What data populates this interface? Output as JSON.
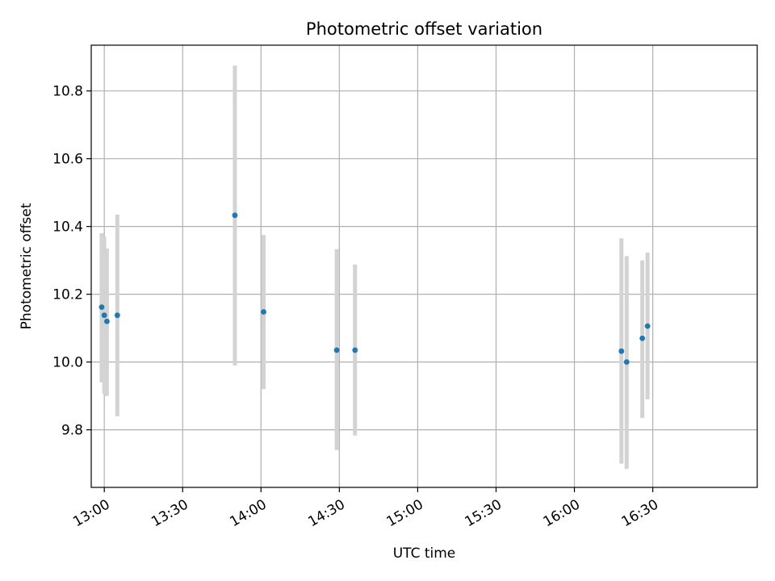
{
  "chart_data": {
    "type": "scatter",
    "title": "Photometric offset variation",
    "xlabel": "UTC time",
    "ylabel": "Photometric offset",
    "xlim": [
      "12:55",
      "17:10"
    ],
    "ylim": [
      9.63,
      10.935
    ],
    "grid": true,
    "x_ticks": [
      "13:00",
      "13:30",
      "14:00",
      "14:30",
      "15:00",
      "15:30",
      "16:00",
      "16:30"
    ],
    "y_ticks": [
      9.8,
      10.0,
      10.2,
      10.4,
      10.6,
      10.8
    ],
    "y_tick_labels": [
      "9.8",
      "10.0",
      "10.2",
      "10.4",
      "10.6",
      "10.8"
    ],
    "point_color": "#1f77b4",
    "errorbar_color": "#d3d3d3",
    "points": [
      {
        "x": "12:59",
        "y": 10.162,
        "yerr_low": 9.94,
        "yerr_high": 10.38
      },
      {
        "x": "13:00",
        "y": 10.138,
        "yerr_low": 9.905,
        "yerr_high": 10.37
      },
      {
        "x": "13:01",
        "y": 10.12,
        "yerr_low": 9.9,
        "yerr_high": 10.335
      },
      {
        "x": "13:05",
        "y": 10.138,
        "yerr_low": 9.84,
        "yerr_high": 10.435
      },
      {
        "x": "13:50",
        "y": 10.433,
        "yerr_low": 9.99,
        "yerr_high": 10.875
      },
      {
        "x": "14:01",
        "y": 10.148,
        "yerr_low": 9.92,
        "yerr_high": 10.375
      },
      {
        "x": "14:29",
        "y": 10.035,
        "yerr_low": 9.74,
        "yerr_high": 10.333
      },
      {
        "x": "14:36",
        "y": 10.035,
        "yerr_low": 9.783,
        "yerr_high": 10.288
      },
      {
        "x": "16:18",
        "y": 10.032,
        "yerr_low": 9.7,
        "yerr_high": 10.365
      },
      {
        "x": "16:20",
        "y": 10.0,
        "yerr_low": 9.685,
        "yerr_high": 10.313
      },
      {
        "x": "16:26",
        "y": 10.07,
        "yerr_low": 9.835,
        "yerr_high": 10.3
      },
      {
        "x": "16:28",
        "y": 10.106,
        "yerr_low": 9.89,
        "yerr_high": 10.323
      }
    ]
  }
}
